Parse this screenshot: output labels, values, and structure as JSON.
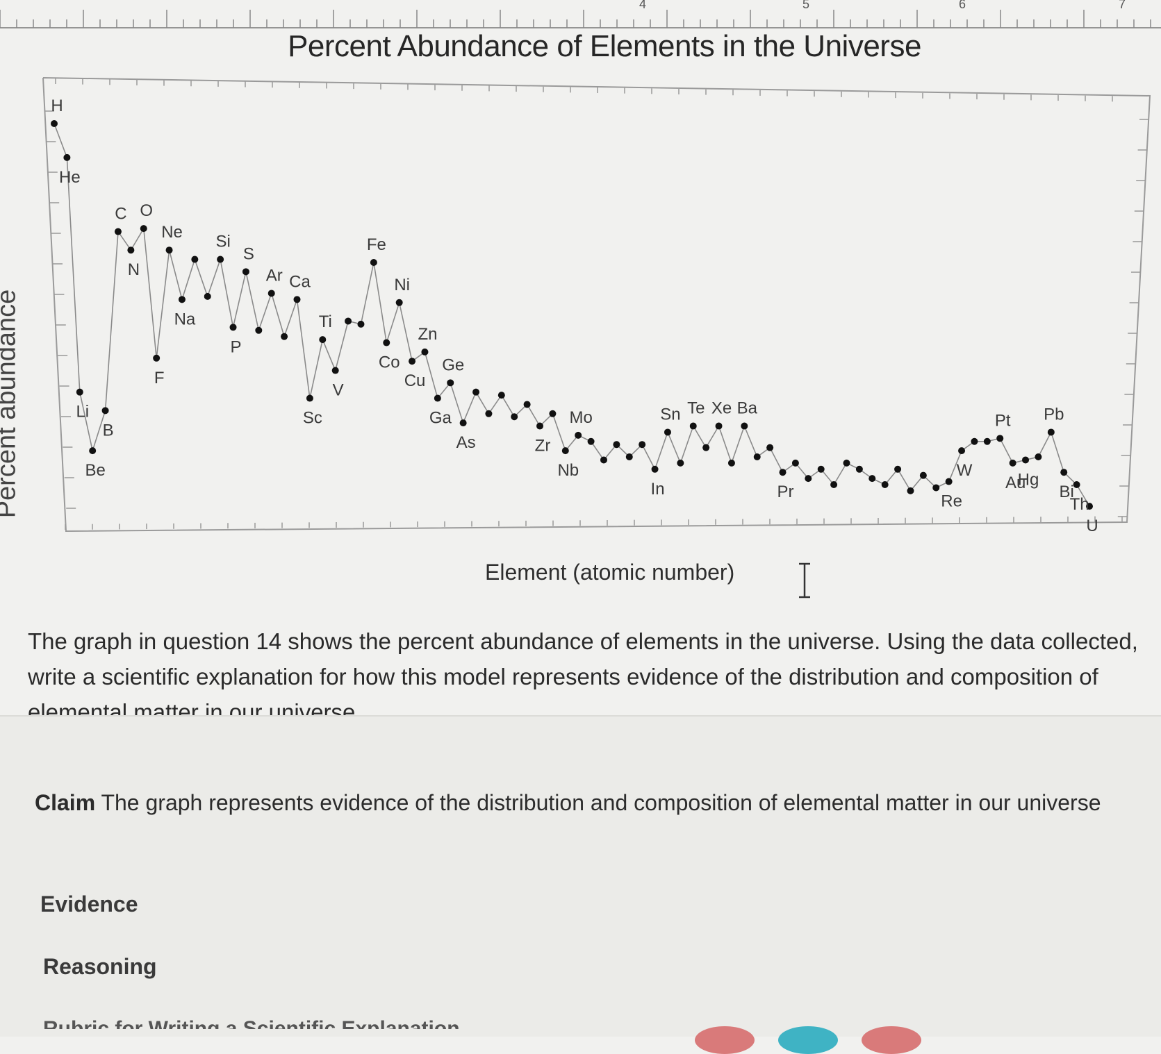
{
  "header_ruler": {
    "tick_numbers": [
      "4",
      "5",
      "6",
      "7"
    ]
  },
  "chart_data": {
    "type": "scatter",
    "title": "Percent Abundance of Elements in the Universe",
    "xlabel": "Element (atomic number)",
    "ylabel": "Percent abundance",
    "scale_y": "log (relative)",
    "connect_points": true,
    "grid": false,
    "xlim": [
      1,
      92
    ],
    "points": [
      {
        "z": 1,
        "label": "H",
        "y": 12.0
      },
      {
        "z": 2,
        "label": "He",
        "y": 10.9
      },
      {
        "z": 3,
        "label": "Li",
        "y": 3.3
      },
      {
        "z": 4,
        "label": "Be",
        "y": 1.4
      },
      {
        "z": 5,
        "label": "B",
        "y": 2.7
      },
      {
        "z": 6,
        "label": "C",
        "y": 8.5
      },
      {
        "z": 7,
        "label": "N",
        "y": 7.9
      },
      {
        "z": 8,
        "label": "O",
        "y": 8.6
      },
      {
        "z": 9,
        "label": "F",
        "y": 4.4
      },
      {
        "z": 10,
        "label": "Ne",
        "y": 7.9
      },
      {
        "z": 11,
        "label": "Na",
        "y": 6.3
      },
      {
        "z": 12,
        "label": "",
        "y": 7.6
      },
      {
        "z": 13,
        "label": "",
        "y": 6.4
      },
      {
        "z": 14,
        "label": "Si",
        "y": 7.6
      },
      {
        "z": 15,
        "label": "P",
        "y": 5.4
      },
      {
        "z": 16,
        "label": "S",
        "y": 7.2
      },
      {
        "z": 17,
        "label": "",
        "y": 5.3
      },
      {
        "z": 18,
        "label": "Ar",
        "y": 6.5
      },
      {
        "z": 19,
        "label": "",
        "y": 5.1
      },
      {
        "z": 20,
        "label": "Ca",
        "y": 6.3
      },
      {
        "z": 21,
        "label": "Sc",
        "y": 3.1
      },
      {
        "z": 22,
        "label": "Ti",
        "y": 5.0
      },
      {
        "z": 23,
        "label": "V",
        "y": 4.0
      },
      {
        "z": 24,
        "label": "",
        "y": 5.6
      },
      {
        "z": 25,
        "label": "",
        "y": 5.5
      },
      {
        "z": 26,
        "label": "Fe",
        "y": 7.5
      },
      {
        "z": 27,
        "label": "Co",
        "y": 4.9
      },
      {
        "z": 28,
        "label": "Ni",
        "y": 6.2
      },
      {
        "z": 29,
        "label": "Cu",
        "y": 4.3
      },
      {
        "z": 30,
        "label": "Zn",
        "y": 4.6
      },
      {
        "z": 31,
        "label": "Ga",
        "y": 3.1
      },
      {
        "z": 32,
        "label": "Ge",
        "y": 3.6
      },
      {
        "z": 33,
        "label": "As",
        "y": 2.3
      },
      {
        "z": 34,
        "label": "",
        "y": 3.3
      },
      {
        "z": 35,
        "label": "",
        "y": 2.6
      },
      {
        "z": 36,
        "label": "",
        "y": 3.2
      },
      {
        "z": 37,
        "label": "",
        "y": 2.5
      },
      {
        "z": 38,
        "label": "",
        "y": 2.9
      },
      {
        "z": 39,
        "label": "Zr",
        "y": 2.2
      },
      {
        "z": 40,
        "label": "",
        "y": 2.6
      },
      {
        "z": 41,
        "label": "Nb",
        "y": 1.4
      },
      {
        "z": 42,
        "label": "Mo",
        "y": 1.9
      },
      {
        "z": 43,
        "label": "",
        "y": 1.7
      },
      {
        "z": 44,
        "label": "",
        "y": 1.1
      },
      {
        "z": 45,
        "label": "",
        "y": 1.6
      },
      {
        "z": 46,
        "label": "",
        "y": 1.2
      },
      {
        "z": 47,
        "label": "",
        "y": 1.6
      },
      {
        "z": 48,
        "label": "In",
        "y": 0.8
      },
      {
        "z": 49,
        "label": "Sn",
        "y": 2.0
      },
      {
        "z": 50,
        "label": "",
        "y": 1.0
      },
      {
        "z": 51,
        "label": "Te",
        "y": 2.2
      },
      {
        "z": 52,
        "label": "",
        "y": 1.5
      },
      {
        "z": 53,
        "label": "Xe",
        "y": 2.2
      },
      {
        "z": 54,
        "label": "",
        "y": 1.0
      },
      {
        "z": 55,
        "label": "Ba",
        "y": 2.2
      },
      {
        "z": 56,
        "label": "",
        "y": 1.2
      },
      {
        "z": 57,
        "label": "",
        "y": 1.5
      },
      {
        "z": 58,
        "label": "Pr",
        "y": 0.7
      },
      {
        "z": 59,
        "label": "",
        "y": 1.0
      },
      {
        "z": 60,
        "label": "",
        "y": 0.5
      },
      {
        "z": 61,
        "label": "",
        "y": 0.8
      },
      {
        "z": 62,
        "label": "",
        "y": 0.3
      },
      {
        "z": 63,
        "label": "",
        "y": 1.0
      },
      {
        "z": 64,
        "label": "",
        "y": 0.8
      },
      {
        "z": 65,
        "label": "",
        "y": 0.5
      },
      {
        "z": 66,
        "label": "",
        "y": 0.3
      },
      {
        "z": 67,
        "label": "",
        "y": 0.8
      },
      {
        "z": 68,
        "label": "",
        "y": 0.1
      },
      {
        "z": 69,
        "label": "",
        "y": 0.6
      },
      {
        "z": 70,
        "label": "",
        "y": 0.2
      },
      {
        "z": 71,
        "label": "Re",
        "y": 0.4
      },
      {
        "z": 72,
        "label": "W",
        "y": 1.4
      },
      {
        "z": 73,
        "label": "",
        "y": 1.7
      },
      {
        "z": 74,
        "label": "",
        "y": 1.7
      },
      {
        "z": 75,
        "label": "Pt",
        "y": 1.8
      },
      {
        "z": 76,
        "label": "Au",
        "y": 1.0
      },
      {
        "z": 77,
        "label": "Hg",
        "y": 1.1
      },
      {
        "z": 78,
        "label": "",
        "y": 1.2
      },
      {
        "z": 79,
        "label": "Pb",
        "y": 2.0
      },
      {
        "z": 80,
        "label": "Bi",
        "y": 0.7
      },
      {
        "z": 81,
        "label": "Th",
        "y": 0.3
      },
      {
        "z": 82,
        "label": "U",
        "y": -0.4
      }
    ]
  },
  "question": {
    "text": "The graph in question 14 shows the percent abundance of elements in the universe. Using the data collected, write a scientific explanation for how this model represents evidence of the distribution and composition of elemental matter in our universe."
  },
  "answer": {
    "claim_label": "Claim",
    "claim_text": "The graph represents evidence of the distribution and composition of elemental matter in our universe",
    "evidence_label": "Evidence",
    "reasoning_label": "Reasoning",
    "rubric_hint": "Rubric for Writing a Scientific Explanation"
  },
  "colors": {
    "background": "#f1f1ef",
    "points": "#111111",
    "lines": "#8a8a8a",
    "text": "#2b2b2b"
  }
}
